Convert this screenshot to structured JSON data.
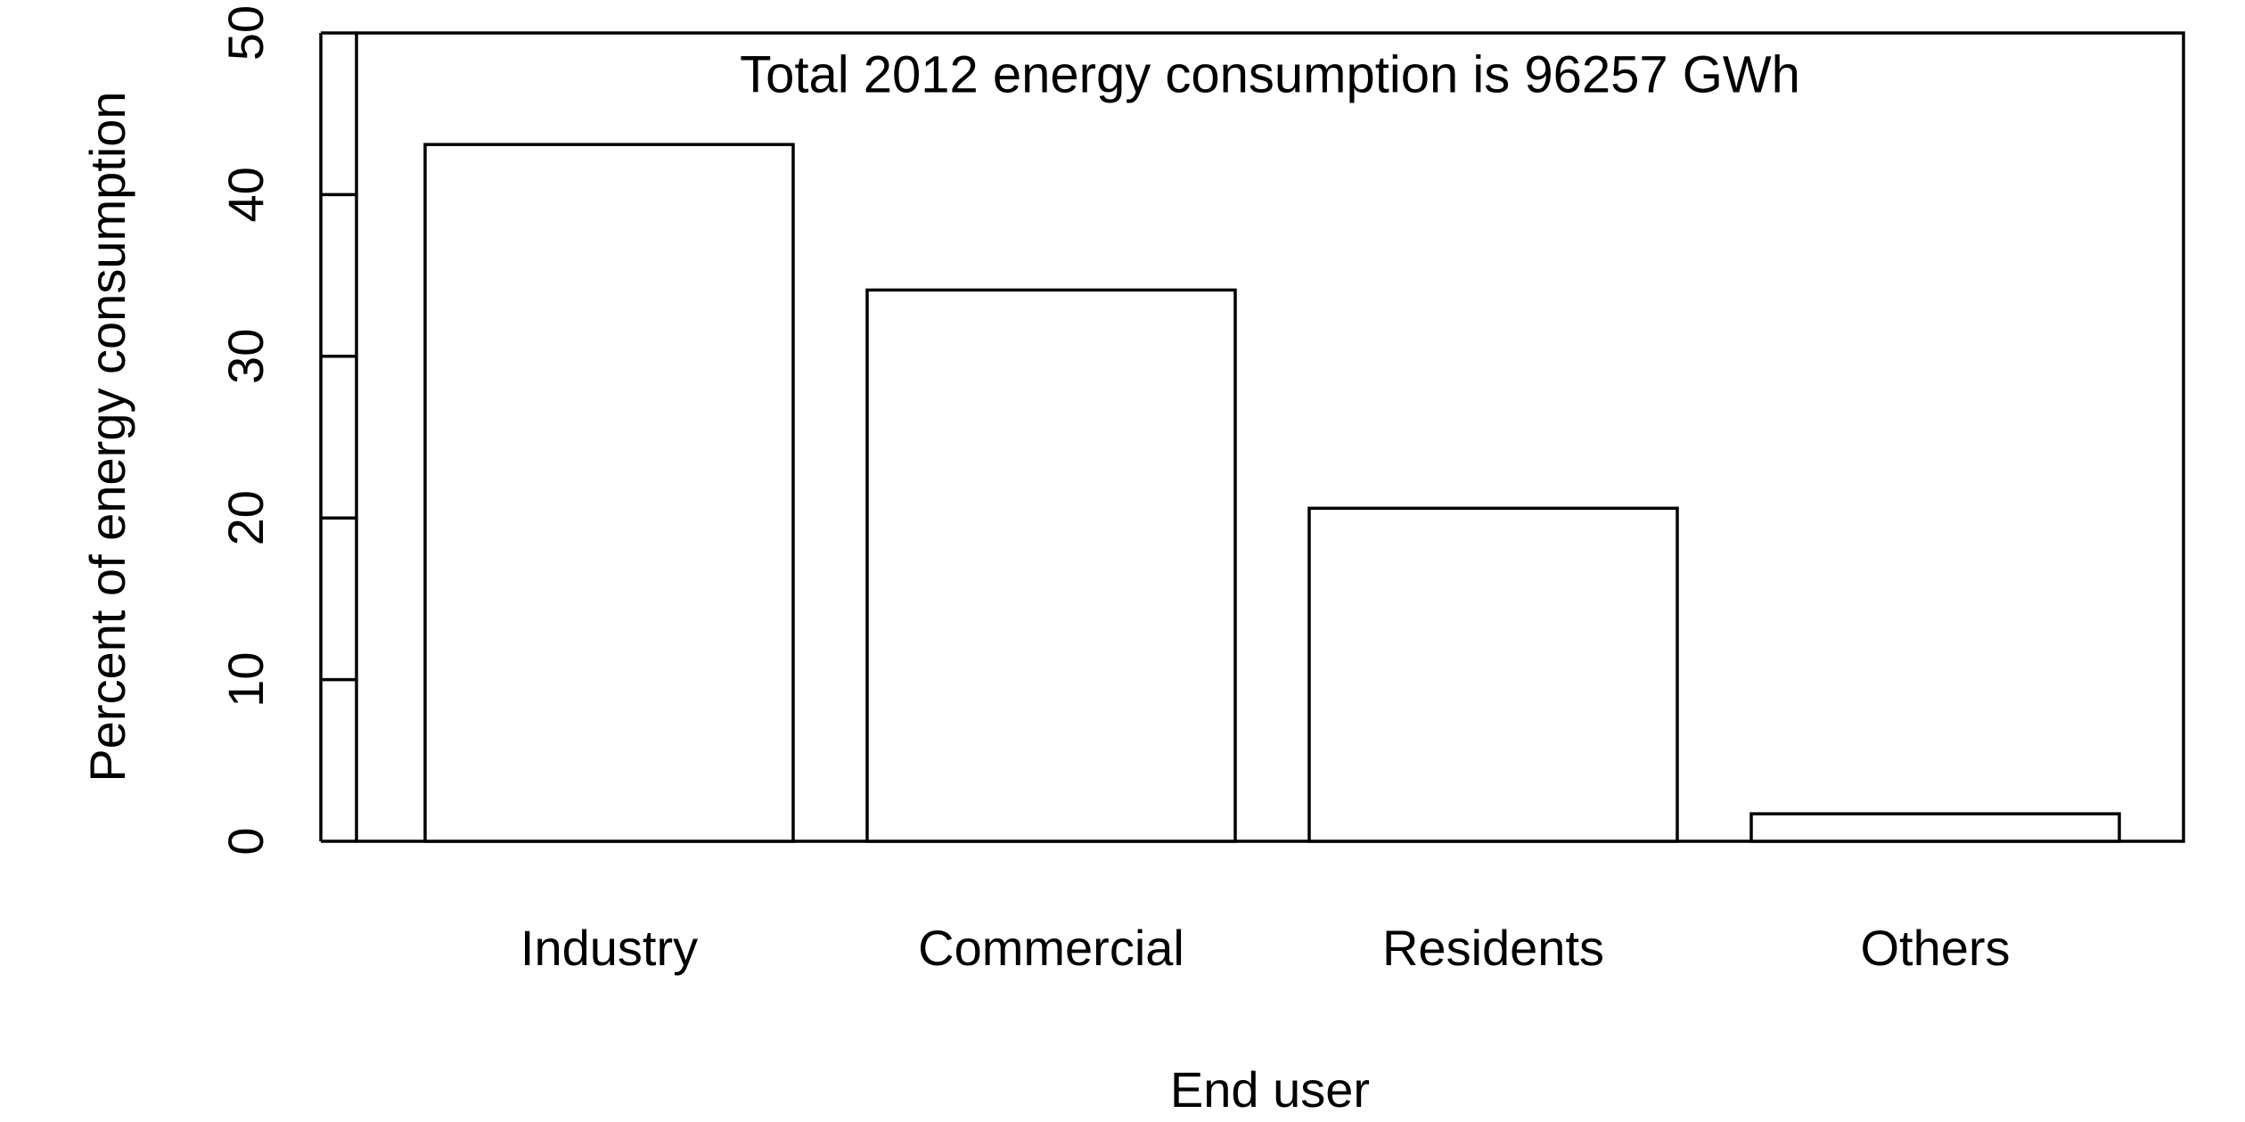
{
  "chart_data": {
    "type": "bar",
    "title": "",
    "annotation": "Total 2012 energy consumption is 96257 GWh",
    "xlabel": "End user",
    "ylabel": "Percent of energy consumption",
    "categories": [
      "Industry",
      "Commercial",
      "Residents",
      "Others"
    ],
    "values": [
      43.1,
      34.1,
      20.6,
      1.7
    ],
    "ylim": [
      0,
      50
    ],
    "yticks": [
      0,
      10,
      20,
      30,
      40,
      50
    ],
    "grid": false,
    "legend": "none",
    "colors": {
      "bar_fill": "#ffffff",
      "bar_stroke": "#000000",
      "axis": "#000000",
      "text": "#000000"
    }
  }
}
